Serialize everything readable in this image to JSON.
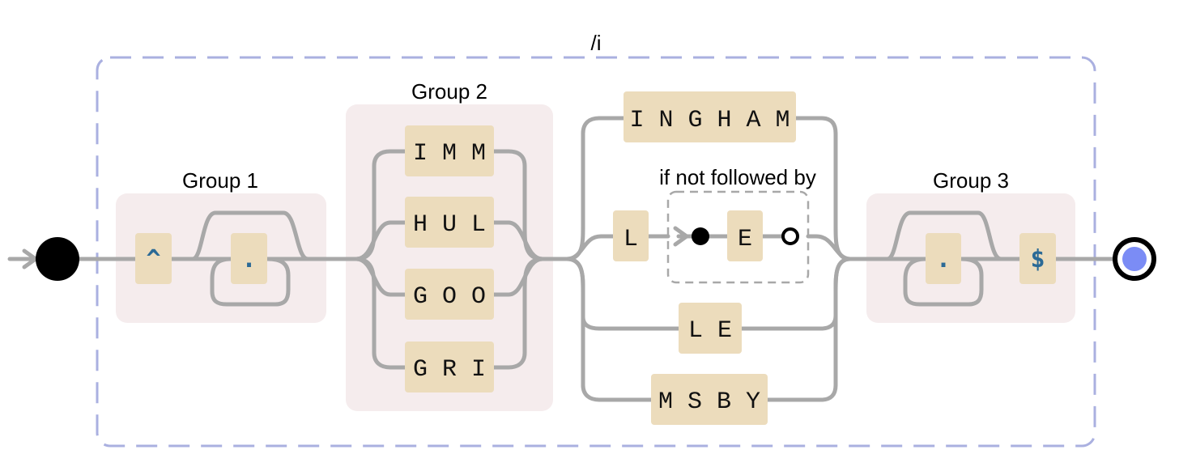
{
  "flags_label": "/i",
  "groups": {
    "group1": "Group 1",
    "group2": "Group 2",
    "group3": "Group 3"
  },
  "group1_items": {
    "start_anchor": "^",
    "any_char": "."
  },
  "group2_alternatives": [
    "I M M",
    "H U L",
    "G O O",
    "G R I"
  ],
  "middle_alternatives": {
    "ingham": "I N G H A M",
    "l": "L",
    "le": "L E",
    "msby": "M S B Y"
  },
  "lookahead": {
    "label": "if not followed by",
    "literal": "E"
  },
  "group3_items": {
    "any_char": ".",
    "end_anchor": "$"
  },
  "colors": {
    "wire": "#a8a8a8",
    "literal_box": "#ecdcbc",
    "group_background": "#f5eced",
    "flag_border": "#aab0e0",
    "anchor_text": "#2b6a96",
    "end_fill": "#7b8cf5"
  }
}
